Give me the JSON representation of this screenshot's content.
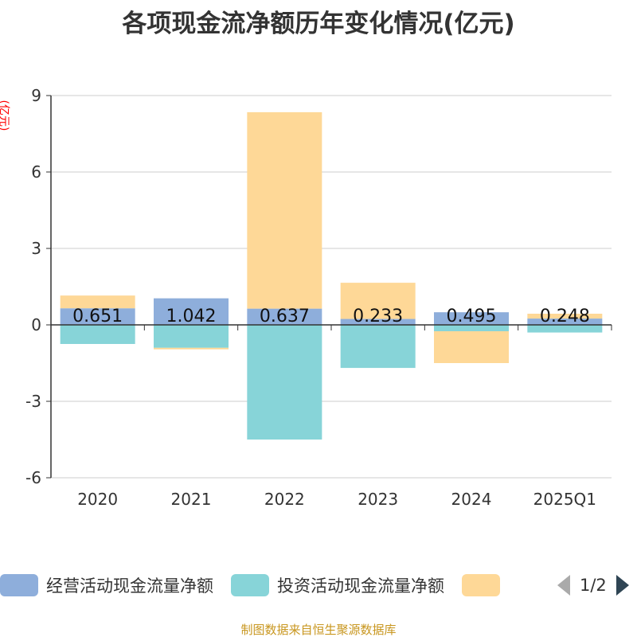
{
  "title": "各项现金流净额历年变化情况(亿元)",
  "unit": "(亿元)",
  "source": "制图数据来自恒生聚源数据库",
  "pager": "1/2",
  "colors": [
    "#8eaedb",
    "#87d4d8",
    "#fed897"
  ],
  "chart_data": {
    "type": "bar",
    "stacked": true,
    "title": "各项现金流净额历年变化情况(亿元)",
    "ylabel": "(亿元)",
    "ylim": [
      -6,
      9
    ],
    "yticks": [
      -6,
      -3,
      0,
      3,
      6,
      9
    ],
    "categories": [
      "2020",
      "2021",
      "2022",
      "2023",
      "2024",
      "2025Q1"
    ],
    "series": [
      {
        "name": "经营活动现金流量净额",
        "values": [
          0.651,
          1.042,
          0.637,
          0.233,
          0.495,
          0.248
        ],
        "labels": [
          "0.651",
          "1.042",
          "0.637",
          "0.233",
          "0.495",
          "0.248"
        ]
      },
      {
        "name": "投资活动现金流量净额",
        "values": [
          -0.75,
          -0.9,
          -4.5,
          -1.69,
          -0.25,
          -0.3
        ]
      },
      {
        "name": "",
        "values": [
          0.5,
          -0.06,
          7.71,
          1.42,
          -1.25,
          0.19
        ]
      }
    ],
    "legend": "bottom",
    "grid": true
  }
}
